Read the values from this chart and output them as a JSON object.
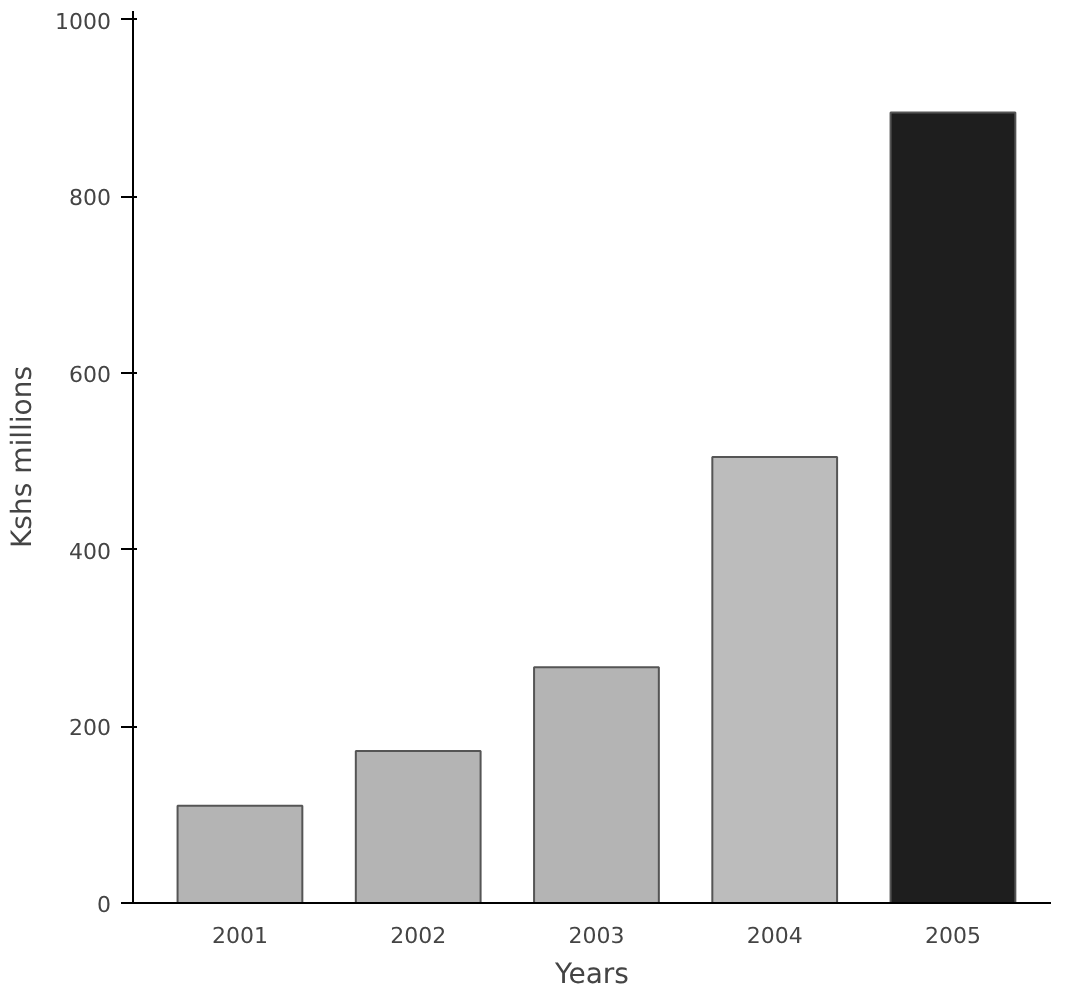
{
  "chart_data": {
    "type": "bar",
    "xlabel": "Years",
    "ylabel": "Kshs millions",
    "categories": [
      "2001",
      "2002",
      "2003",
      "2004",
      "2005"
    ],
    "values": [
      110,
      172,
      267,
      505,
      895
    ],
    "colors": [
      "#b4b4b4",
      "#b4b4b4",
      "#b4b4b4",
      "#bcbcbc",
      "#1e1e1e"
    ],
    "ylim": [
      0,
      1010
    ],
    "yticks": [
      0,
      200,
      400,
      600,
      800,
      1000
    ],
    "grid": false
  }
}
